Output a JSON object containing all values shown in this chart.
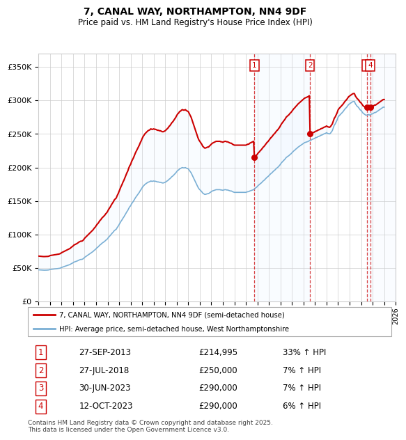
{
  "title": "7, CANAL WAY, NORTHAMPTON, NN4 9DF",
  "subtitle": "Price paid vs. HM Land Registry's House Price Index (HPI)",
  "footnote": "Contains HM Land Registry data © Crown copyright and database right 2025.\nThis data is licensed under the Open Government Licence v3.0.",
  "legend_entry1": "7, CANAL WAY, NORTHAMPTON, NN4 9DF (semi-detached house)",
  "legend_entry2": "HPI: Average price, semi-detached house, West Northamptonshire",
  "sale_color": "#cc0000",
  "hpi_color": "#7aafd4",
  "hpi_fill_color": "#ddeeff",
  "background_color": "#ffffff",
  "grid_color": "#cccccc",
  "ylim": [
    0,
    370000
  ],
  "yticks": [
    0,
    50000,
    100000,
    150000,
    200000,
    250000,
    300000,
    350000
  ],
  "xlim_start": 1995.0,
  "xlim_end": 2026.0,
  "transactions": [
    {
      "num": 1,
      "date_str": "27-SEP-2013",
      "price": 214995,
      "year": 2013.74,
      "pct": "33%",
      "direction": "↑"
    },
    {
      "num": 2,
      "date_str": "27-JUL-2018",
      "price": 250000,
      "year": 2018.57,
      "pct": "7%",
      "direction": "↑"
    },
    {
      "num": 3,
      "date_str": "30-JUN-2023",
      "price": 290000,
      "year": 2023.49,
      "pct": "7%",
      "direction": "↑"
    },
    {
      "num": 4,
      "date_str": "12-OCT-2023",
      "price": 290000,
      "year": 2023.79,
      "pct": "6%",
      "direction": "↑"
    }
  ],
  "hpi_data": [
    [
      1995.0,
      47500
    ],
    [
      1995.083,
      47400
    ],
    [
      1995.167,
      47300
    ],
    [
      1995.25,
      47200
    ],
    [
      1995.333,
      47100
    ],
    [
      1995.417,
      47000
    ],
    [
      1995.5,
      47000
    ],
    [
      1995.583,
      47000
    ],
    [
      1995.667,
      47100
    ],
    [
      1995.75,
      47100
    ],
    [
      1995.833,
      47200
    ],
    [
      1995.917,
      47400
    ],
    [
      1996.0,
      48000
    ],
    [
      1996.083,
      48200
    ],
    [
      1996.167,
      48400
    ],
    [
      1996.25,
      48500
    ],
    [
      1996.333,
      48700
    ],
    [
      1996.417,
      48900
    ],
    [
      1996.5,
      49000
    ],
    [
      1996.583,
      49200
    ],
    [
      1996.667,
      49400
    ],
    [
      1996.75,
      49500
    ],
    [
      1996.833,
      49800
    ],
    [
      1996.917,
      50200
    ],
    [
      1997.0,
      51000
    ],
    [
      1997.083,
      51500
    ],
    [
      1997.167,
      52000
    ],
    [
      1997.25,
      52500
    ],
    [
      1997.333,
      53000
    ],
    [
      1997.417,
      53500
    ],
    [
      1997.5,
      54000
    ],
    [
      1997.583,
      54500
    ],
    [
      1997.667,
      55000
    ],
    [
      1997.75,
      55500
    ],
    [
      1997.833,
      56500
    ],
    [
      1997.917,
      57200
    ],
    [
      1998.0,
      58000
    ],
    [
      1998.083,
      59000
    ],
    [
      1998.167,
      59500
    ],
    [
      1998.25,
      60000
    ],
    [
      1998.333,
      60500
    ],
    [
      1998.417,
      61200
    ],
    [
      1998.5,
      62000
    ],
    [
      1998.583,
      62500
    ],
    [
      1998.667,
      63000
    ],
    [
      1998.75,
      63000
    ],
    [
      1998.833,
      63500
    ],
    [
      1998.917,
      64500
    ],
    [
      1999.0,
      66000
    ],
    [
      1999.083,
      67000
    ],
    [
      1999.167,
      68000
    ],
    [
      1999.25,
      69000
    ],
    [
      1999.333,
      70000
    ],
    [
      1999.417,
      71000
    ],
    [
      1999.5,
      72000
    ],
    [
      1999.583,
      73000
    ],
    [
      1999.667,
      74000
    ],
    [
      1999.75,
      75000
    ],
    [
      1999.833,
      76500
    ],
    [
      1999.917,
      77500
    ],
    [
      2000.0,
      79000
    ],
    [
      2000.083,
      80500
    ],
    [
      2000.167,
      81500
    ],
    [
      2000.25,
      83000
    ],
    [
      2000.333,
      84500
    ],
    [
      2000.417,
      85500
    ],
    [
      2000.5,
      87000
    ],
    [
      2000.583,
      88000
    ],
    [
      2000.667,
      89000
    ],
    [
      2000.75,
      90000
    ],
    [
      2000.833,
      91500
    ],
    [
      2000.917,
      92500
    ],
    [
      2001.0,
      94000
    ],
    [
      2001.083,
      96000
    ],
    [
      2001.167,
      97500
    ],
    [
      2001.25,
      99000
    ],
    [
      2001.333,
      101000
    ],
    [
      2001.417,
      102500
    ],
    [
      2001.5,
      104000
    ],
    [
      2001.583,
      106000
    ],
    [
      2001.667,
      107000
    ],
    [
      2001.75,
      108000
    ],
    [
      2001.833,
      110500
    ],
    [
      2001.917,
      112500
    ],
    [
      2002.0,
      115000
    ],
    [
      2002.083,
      117500
    ],
    [
      2002.167,
      120000
    ],
    [
      2002.25,
      122000
    ],
    [
      2002.333,
      124500
    ],
    [
      2002.417,
      126500
    ],
    [
      2002.5,
      129000
    ],
    [
      2002.583,
      131500
    ],
    [
      2002.667,
      134000
    ],
    [
      2002.75,
      136000
    ],
    [
      2002.833,
      139000
    ],
    [
      2002.917,
      141500
    ],
    [
      2003.0,
      143000
    ],
    [
      2003.083,
      146000
    ],
    [
      2003.167,
      148000
    ],
    [
      2003.25,
      150000
    ],
    [
      2003.333,
      152500
    ],
    [
      2003.417,
      155000
    ],
    [
      2003.5,
      157000
    ],
    [
      2003.583,
      159000
    ],
    [
      2003.667,
      161000
    ],
    [
      2003.75,
      163000
    ],
    [
      2003.833,
      165500
    ],
    [
      2003.917,
      167500
    ],
    [
      2004.0,
      170000
    ],
    [
      2004.083,
      172000
    ],
    [
      2004.167,
      173500
    ],
    [
      2004.25,
      175000
    ],
    [
      2004.333,
      176000
    ],
    [
      2004.417,
      177000
    ],
    [
      2004.5,
      178000
    ],
    [
      2004.583,
      178500
    ],
    [
      2004.667,
      179000
    ],
    [
      2004.75,
      180000
    ],
    [
      2004.833,
      179500
    ],
    [
      2004.917,
      179500
    ],
    [
      2005.0,
      180000
    ],
    [
      2005.083,
      179500
    ],
    [
      2005.167,
      179500
    ],
    [
      2005.25,
      179000
    ],
    [
      2005.333,
      178500
    ],
    [
      2005.417,
      178500
    ],
    [
      2005.5,
      178000
    ],
    [
      2005.583,
      178000
    ],
    [
      2005.667,
      177500
    ],
    [
      2005.75,
      177000
    ],
    [
      2005.833,
      177000
    ],
    [
      2005.917,
      177500
    ],
    [
      2006.0,
      178000
    ],
    [
      2006.083,
      179000
    ],
    [
      2006.167,
      180000
    ],
    [
      2006.25,
      181000
    ],
    [
      2006.333,
      182500
    ],
    [
      2006.417,
      183500
    ],
    [
      2006.5,
      185000
    ],
    [
      2006.583,
      186500
    ],
    [
      2006.667,
      187500
    ],
    [
      2006.75,
      189000
    ],
    [
      2006.833,
      190500
    ],
    [
      2006.917,
      192000
    ],
    [
      2007.0,
      194000
    ],
    [
      2007.083,
      195500
    ],
    [
      2007.167,
      196500
    ],
    [
      2007.25,
      198000
    ],
    [
      2007.333,
      198500
    ],
    [
      2007.417,
      199500
    ],
    [
      2007.5,
      200000
    ],
    [
      2007.583,
      199500
    ],
    [
      2007.667,
      199500
    ],
    [
      2007.75,
      200000
    ],
    [
      2007.833,
      199000
    ],
    [
      2007.917,
      198500
    ],
    [
      2008.0,
      198000
    ],
    [
      2008.083,
      196000
    ],
    [
      2008.167,
      194000
    ],
    [
      2008.25,
      192000
    ],
    [
      2008.333,
      189000
    ],
    [
      2008.417,
      186000
    ],
    [
      2008.5,
      183000
    ],
    [
      2008.583,
      180000
    ],
    [
      2008.667,
      177000
    ],
    [
      2008.75,
      174000
    ],
    [
      2008.833,
      171000
    ],
    [
      2008.917,
      168500
    ],
    [
      2009.0,
      167000
    ],
    [
      2009.083,
      165500
    ],
    [
      2009.167,
      164000
    ],
    [
      2009.25,
      162000
    ],
    [
      2009.333,
      161000
    ],
    [
      2009.417,
      160000
    ],
    [
      2009.5,
      160000
    ],
    [
      2009.583,
      160500
    ],
    [
      2009.667,
      161000
    ],
    [
      2009.75,
      161000
    ],
    [
      2009.833,
      162000
    ],
    [
      2009.917,
      163000
    ],
    [
      2010.0,
      164000
    ],
    [
      2010.083,
      165000
    ],
    [
      2010.167,
      165500
    ],
    [
      2010.25,
      166000
    ],
    [
      2010.333,
      166500
    ],
    [
      2010.417,
      167000
    ],
    [
      2010.5,
      167000
    ],
    [
      2010.583,
      167000
    ],
    [
      2010.667,
      167000
    ],
    [
      2010.75,
      167000
    ],
    [
      2010.833,
      166500
    ],
    [
      2010.917,
      166500
    ],
    [
      2011.0,
      166000
    ],
    [
      2011.083,
      166500
    ],
    [
      2011.167,
      167000
    ],
    [
      2011.25,
      167000
    ],
    [
      2011.333,
      166500
    ],
    [
      2011.417,
      166500
    ],
    [
      2011.5,
      166000
    ],
    [
      2011.583,
      165500
    ],
    [
      2011.667,
      165000
    ],
    [
      2011.75,
      165000
    ],
    [
      2011.833,
      164000
    ],
    [
      2011.917,
      163500
    ],
    [
      2012.0,
      163000
    ],
    [
      2012.083,
      163000
    ],
    [
      2012.167,
      163000
    ],
    [
      2012.25,
      163000
    ],
    [
      2012.333,
      163000
    ],
    [
      2012.417,
      163000
    ],
    [
      2012.5,
      163000
    ],
    [
      2012.583,
      163000
    ],
    [
      2012.667,
      163000
    ],
    [
      2012.75,
      163000
    ],
    [
      2012.833,
      163000
    ],
    [
      2012.917,
      163000
    ],
    [
      2013.0,
      163000
    ],
    [
      2013.083,
      163500
    ],
    [
      2013.167,
      164000
    ],
    [
      2013.25,
      164000
    ],
    [
      2013.333,
      165000
    ],
    [
      2013.417,
      165500
    ],
    [
      2013.5,
      166000
    ],
    [
      2013.583,
      166500
    ],
    [
      2013.667,
      167000
    ],
    [
      2013.75,
      168000
    ],
    [
      2013.833,
      169500
    ],
    [
      2013.917,
      170500
    ],
    [
      2014.0,
      172000
    ],
    [
      2014.083,
      173500
    ],
    [
      2014.167,
      174500
    ],
    [
      2014.25,
      176000
    ],
    [
      2014.333,
      177000
    ],
    [
      2014.417,
      178500
    ],
    [
      2014.5,
      180000
    ],
    [
      2014.583,
      181000
    ],
    [
      2014.667,
      182500
    ],
    [
      2014.75,
      184000
    ],
    [
      2014.833,
      185500
    ],
    [
      2014.917,
      186500
    ],
    [
      2015.0,
      188000
    ],
    [
      2015.083,
      189500
    ],
    [
      2015.167,
      191000
    ],
    [
      2015.25,
      192000
    ],
    [
      2015.333,
      193500
    ],
    [
      2015.417,
      195000
    ],
    [
      2015.5,
      196000
    ],
    [
      2015.583,
      197500
    ],
    [
      2015.667,
      199000
    ],
    [
      2015.75,
      200000
    ],
    [
      2015.833,
      201500
    ],
    [
      2015.917,
      203000
    ],
    [
      2016.0,
      205000
    ],
    [
      2016.083,
      207000
    ],
    [
      2016.167,
      208500
    ],
    [
      2016.25,
      210000
    ],
    [
      2016.333,
      211500
    ],
    [
      2016.417,
      213000
    ],
    [
      2016.5,
      215000
    ],
    [
      2016.583,
      216000
    ],
    [
      2016.667,
      217000
    ],
    [
      2016.75,
      218000
    ],
    [
      2016.833,
      219500
    ],
    [
      2016.917,
      220500
    ],
    [
      2017.0,
      222000
    ],
    [
      2017.083,
      223500
    ],
    [
      2017.167,
      225000
    ],
    [
      2017.25,
      226000
    ],
    [
      2017.333,
      227500
    ],
    [
      2017.417,
      228500
    ],
    [
      2017.5,
      230000
    ],
    [
      2017.583,
      231000
    ],
    [
      2017.667,
      232000
    ],
    [
      2017.75,
      233000
    ],
    [
      2017.833,
      234000
    ],
    [
      2017.917,
      235000
    ],
    [
      2018.0,
      236000
    ],
    [
      2018.083,
      237000
    ],
    [
      2018.167,
      237500
    ],
    [
      2018.25,
      238000
    ],
    [
      2018.333,
      238500
    ],
    [
      2018.417,
      239000
    ],
    [
      2018.5,
      240000
    ],
    [
      2018.583,
      240500
    ],
    [
      2018.667,
      241000
    ],
    [
      2018.75,
      242000
    ],
    [
      2018.833,
      242500
    ],
    [
      2018.917,
      243000
    ],
    [
      2019.0,
      244000
    ],
    [
      2019.083,
      244500
    ],
    [
      2019.167,
      245000
    ],
    [
      2019.25,
      246000
    ],
    [
      2019.333,
      246500
    ],
    [
      2019.417,
      247000
    ],
    [
      2019.5,
      248000
    ],
    [
      2019.583,
      248500
    ],
    [
      2019.667,
      249000
    ],
    [
      2019.75,
      250000
    ],
    [
      2019.833,
      250500
    ],
    [
      2019.917,
      251000
    ],
    [
      2020.0,
      252000
    ],
    [
      2020.083,
      251000
    ],
    [
      2020.167,
      250500
    ],
    [
      2020.25,
      250000
    ],
    [
      2020.333,
      251000
    ],
    [
      2020.417,
      253000
    ],
    [
      2020.5,
      255000
    ],
    [
      2020.583,
      259000
    ],
    [
      2020.667,
      263000
    ],
    [
      2020.75,
      265000
    ],
    [
      2020.833,
      268000
    ],
    [
      2020.917,
      271000
    ],
    [
      2021.0,
      275000
    ],
    [
      2021.083,
      277000
    ],
    [
      2021.167,
      278500
    ],
    [
      2021.25,
      280000
    ],
    [
      2021.333,
      281500
    ],
    [
      2021.417,
      283000
    ],
    [
      2021.5,
      285000
    ],
    [
      2021.583,
      287000
    ],
    [
      2021.667,
      288500
    ],
    [
      2021.75,
      290000
    ],
    [
      2021.833,
      292000
    ],
    [
      2021.917,
      294000
    ],
    [
      2022.0,
      295000
    ],
    [
      2022.083,
      296000
    ],
    [
      2022.167,
      297000
    ],
    [
      2022.25,
      298000
    ],
    [
      2022.333,
      298500
    ],
    [
      2022.417,
      298500
    ],
    [
      2022.5,
      295000
    ],
    [
      2022.583,
      293000
    ],
    [
      2022.667,
      291000
    ],
    [
      2022.75,
      290000
    ],
    [
      2022.833,
      288000
    ],
    [
      2022.917,
      286000
    ],
    [
      2023.0,
      285000
    ],
    [
      2023.083,
      283000
    ],
    [
      2023.167,
      281000
    ],
    [
      2023.25,
      280000
    ],
    [
      2023.333,
      279000
    ],
    [
      2023.417,
      278000
    ],
    [
      2023.5,
      278000
    ],
    [
      2023.583,
      278500
    ],
    [
      2023.667,
      279000
    ],
    [
      2023.75,
      278000
    ],
    [
      2023.833,
      279000
    ],
    [
      2023.917,
      280000
    ],
    [
      2024.0,
      280000
    ],
    [
      2024.083,
      281000
    ],
    [
      2024.167,
      282000
    ],
    [
      2024.25,
      282000
    ],
    [
      2024.333,
      283000
    ],
    [
      2024.417,
      284000
    ],
    [
      2024.5,
      285000
    ],
    [
      2024.583,
      286000
    ],
    [
      2024.667,
      287000
    ],
    [
      2024.75,
      288000
    ],
    [
      2024.833,
      289000
    ],
    [
      2024.917,
      290000
    ],
    [
      2025.0,
      290000
    ]
  ]
}
